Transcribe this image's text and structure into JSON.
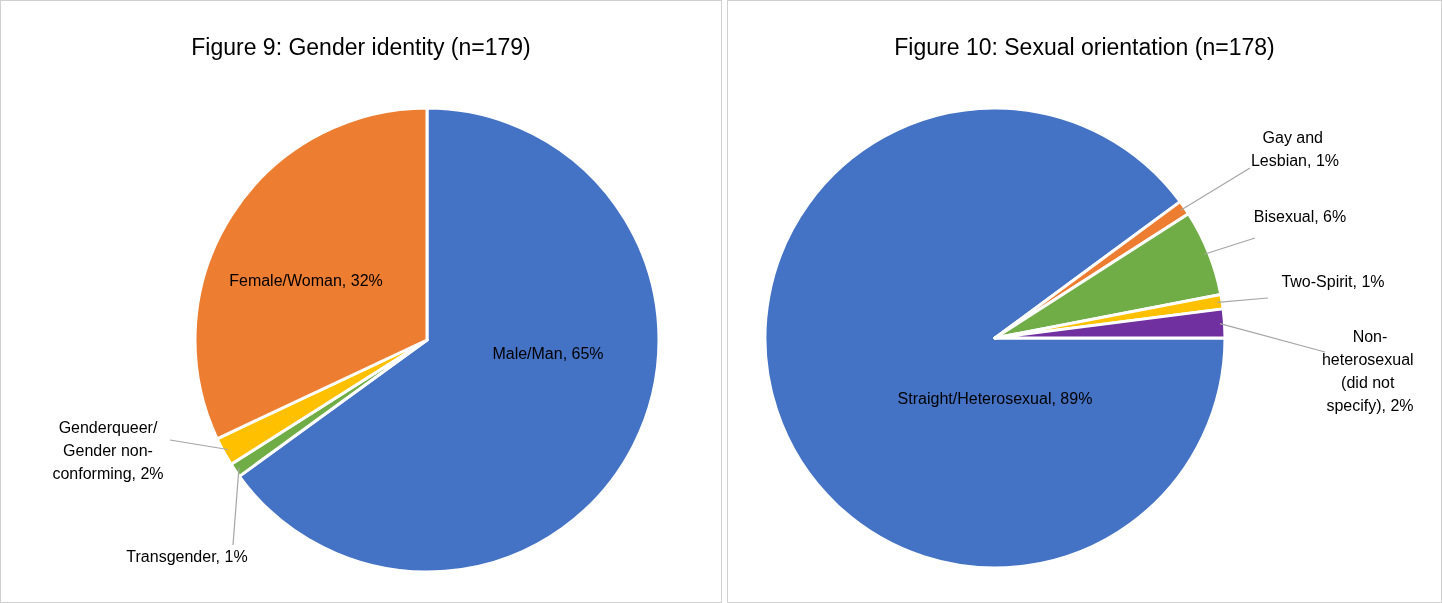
{
  "chart_data": [
    {
      "type": "pie",
      "title": "Figure 9: Gender identity (n=179)",
      "categories": [
        "Male/Man",
        "Transgender",
        "Genderqueer/Gender non-conforming",
        "Female/Woman"
      ],
      "values": [
        65,
        1,
        2,
        32
      ],
      "value_labels": [
        "65%",
        "1%",
        "2%",
        "32%"
      ],
      "colors": [
        "#4472c4",
        "#70ad47",
        "#ffc000",
        "#ed7d31"
      ]
    },
    {
      "type": "pie",
      "title": "Figure 10: Sexual orientation (n=178)",
      "categories": [
        "Straight/Heterosexual",
        "Gay and Lesbian",
        "Bisexual",
        "Two-Spirit",
        "Non-heterosexual (did not specify)"
      ],
      "values": [
        89,
        1,
        6,
        1,
        2
      ],
      "value_labels": [
        "89%",
        "1%",
        "6%",
        "1%",
        "2%"
      ],
      "colors": [
        "#4472c4",
        "#ed7d31",
        "#70ad47",
        "#ffc000",
        "#7030a0"
      ]
    }
  ]
}
